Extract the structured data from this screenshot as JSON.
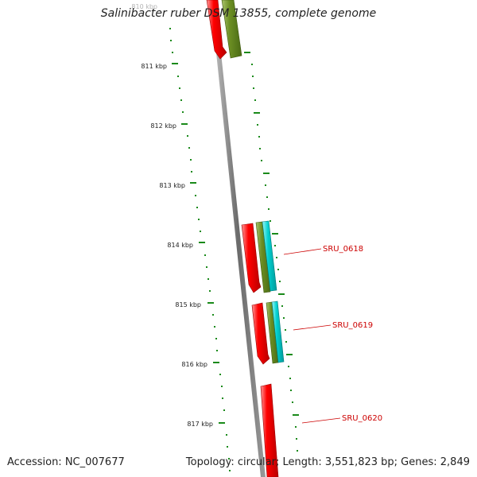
{
  "title": "Salinibacter ruber DSM 13855, complete genome",
  "accession": "Accession: NC_007677",
  "summary": "Topology: circular; Length: 3,551,823 bp; Genes: 2,849",
  "colors": {
    "backbone": "#7a7a7a",
    "tick": "#1a8a1a",
    "cds": "#ff0000",
    "cds_label": "#cc0000",
    "feature_olive": "#6b8e23",
    "feature_cyan": "#00cccc"
  },
  "kbp_labels": [
    "810 kbp",
    "811 kbp",
    "812 kbp",
    "813 kbp",
    "814 kbp",
    "815 kbp",
    "816 kbp",
    "817 kbp"
  ],
  "genes": [
    {
      "label": "SRU_0618"
    },
    {
      "label": "SRU_0619"
    },
    {
      "label": "SRU_0620"
    }
  ]
}
